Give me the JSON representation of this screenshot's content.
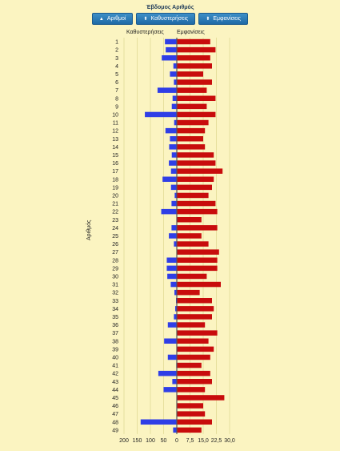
{
  "title": "Έβδομος Αριθμός",
  "buttons": [
    {
      "label": "Αριθμοί",
      "icon": "triangle-up-icon"
    },
    {
      "label": "Καθυστερήσεις",
      "icon": "sort-icon"
    },
    {
      "label": "Εμφανίσεις",
      "icon": "sort-icon"
    }
  ],
  "headers": {
    "left": "Καθυστερήσεις",
    "right": "Εμφανίσεις"
  },
  "chart_data": {
    "type": "bar",
    "orientation": "horizontal-diverging",
    "ylabel": "Αριθμός",
    "categories": [
      1,
      2,
      3,
      4,
      5,
      6,
      7,
      8,
      9,
      10,
      11,
      12,
      13,
      14,
      15,
      16,
      17,
      18,
      19,
      20,
      21,
      22,
      23,
      24,
      25,
      26,
      27,
      28,
      29,
      30,
      31,
      32,
      33,
      34,
      35,
      36,
      37,
      38,
      39,
      40,
      41,
      42,
      43,
      44,
      45,
      46,
      47,
      48,
      49
    ],
    "series": [
      {
        "name": "Καθυστερήσεις",
        "color": "#2f3ee6",
        "values": [
          45,
          42,
          57,
          13,
          26,
          11,
          73,
          16,
          19,
          121,
          10,
          43,
          26,
          29,
          19,
          30,
          22,
          54,
          22,
          8,
          20,
          59,
          1,
          20,
          30,
          11,
          1,
          38,
          38,
          36,
          23,
          9,
          3,
          6,
          11,
          34,
          1,
          48,
          1,
          34,
          2,
          70,
          17,
          50,
          1,
          1,
          1,
          137,
          14
        ]
      },
      {
        "name": "Εμφανίσεις",
        "color": "#c80c0c",
        "values": [
          19,
          22,
          19,
          20,
          15,
          20,
          17,
          22,
          17,
          22,
          18,
          16,
          15,
          16,
          21,
          22,
          26,
          21,
          20,
          18,
          22,
          23,
          14,
          23,
          14,
          18,
          24,
          23,
          23,
          17,
          25,
          13,
          20,
          21,
          20,
          16,
          23,
          18,
          21,
          19,
          14,
          19,
          20,
          16,
          27,
          15,
          16,
          20,
          14
        ]
      }
    ],
    "xticks_left": [
      "200",
      "150",
      "100",
      "50",
      "0"
    ],
    "xticks_right": [
      "0",
      "7,5",
      "15,0",
      "22,5",
      "30,0"
    ],
    "xlim_left": [
      0,
      200
    ],
    "xlim_right": [
      0,
      30
    ],
    "grid": true
  }
}
